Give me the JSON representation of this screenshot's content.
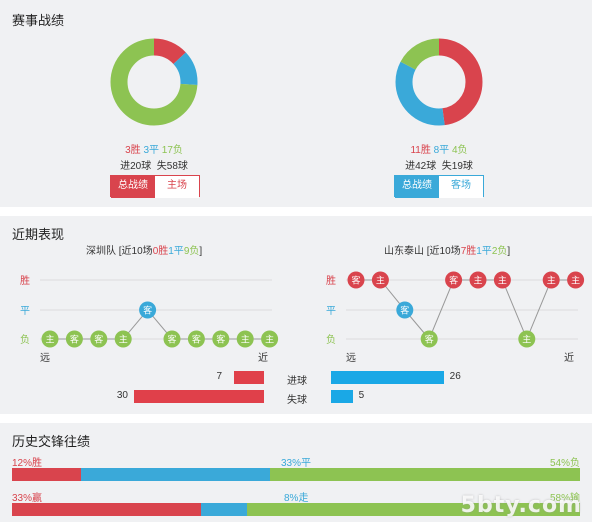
{
  "sections": {
    "record_title": "赛事战绩",
    "recent_title": "近期表现",
    "h2h_title": "历史交锋往绩"
  },
  "colors": {
    "win": "#d9444d",
    "draw": "#3aa9d9",
    "loss": "#8dc352"
  },
  "home": {
    "name": "深圳队",
    "record": {
      "wins": 3,
      "draws": 3,
      "losses": 17,
      "win_label": "3胜",
      "draw_label": "3平",
      "loss_label": "17负"
    },
    "goals_label": "进20球  失58球",
    "tabs": {
      "total": "总战绩",
      "venue": "主场"
    },
    "recent_prefix": "深圳队 [近10场",
    "recent_w": "0胜",
    "recent_d": "1平",
    "recent_l": "9负",
    "recent_suffix": "]",
    "recent_results": [
      "loss",
      "loss",
      "loss",
      "loss",
      "draw",
      "loss",
      "loss",
      "loss",
      "loss",
      "loss"
    ],
    "recent_venues": [
      "主",
      "客",
      "客",
      "主",
      "客",
      "客",
      "客",
      "客",
      "主",
      "主"
    ]
  },
  "away": {
    "name": "山东泰山",
    "record": {
      "wins": 11,
      "draws": 8,
      "losses": 4,
      "win_label": "11胜",
      "draw_label": "8平",
      "loss_label": "4负"
    },
    "goals_label": "进42球  失19球",
    "tabs": {
      "total": "总战绩",
      "venue": "客场"
    },
    "recent_prefix": "山东泰山 [近10场",
    "recent_w": "7胜",
    "recent_d": "1平",
    "recent_l": "2负",
    "recent_suffix": "]",
    "recent_results": [
      "win",
      "win",
      "draw",
      "loss",
      "win",
      "win",
      "win",
      "loss",
      "win",
      "win"
    ],
    "recent_venues": [
      "客",
      "主",
      "客",
      "客",
      "客",
      "主",
      "主",
      "主",
      "主",
      "主"
    ]
  },
  "axis": {
    "win": "胜",
    "draw": "平",
    "loss": "负",
    "far": "远",
    "near": "近"
  },
  "goals_compare": {
    "scored_label": "进球",
    "conceded_label": "失球",
    "home_scored": 7,
    "home_conceded": 30,
    "away_scored": 26,
    "away_conceded": 5
  },
  "h2h": {
    "row1": {
      "left": "12%胜",
      "mid": "33%平",
      "right": "54%负",
      "left_pct": 12,
      "mid_pct": 33,
      "right_pct": 54
    },
    "row2": {
      "left": "33%赢",
      "mid": "8%走",
      "right": "58%输",
      "left_pct": 33,
      "mid_pct": 8,
      "right_pct": 58
    }
  },
  "watermark": "5bty.com"
}
